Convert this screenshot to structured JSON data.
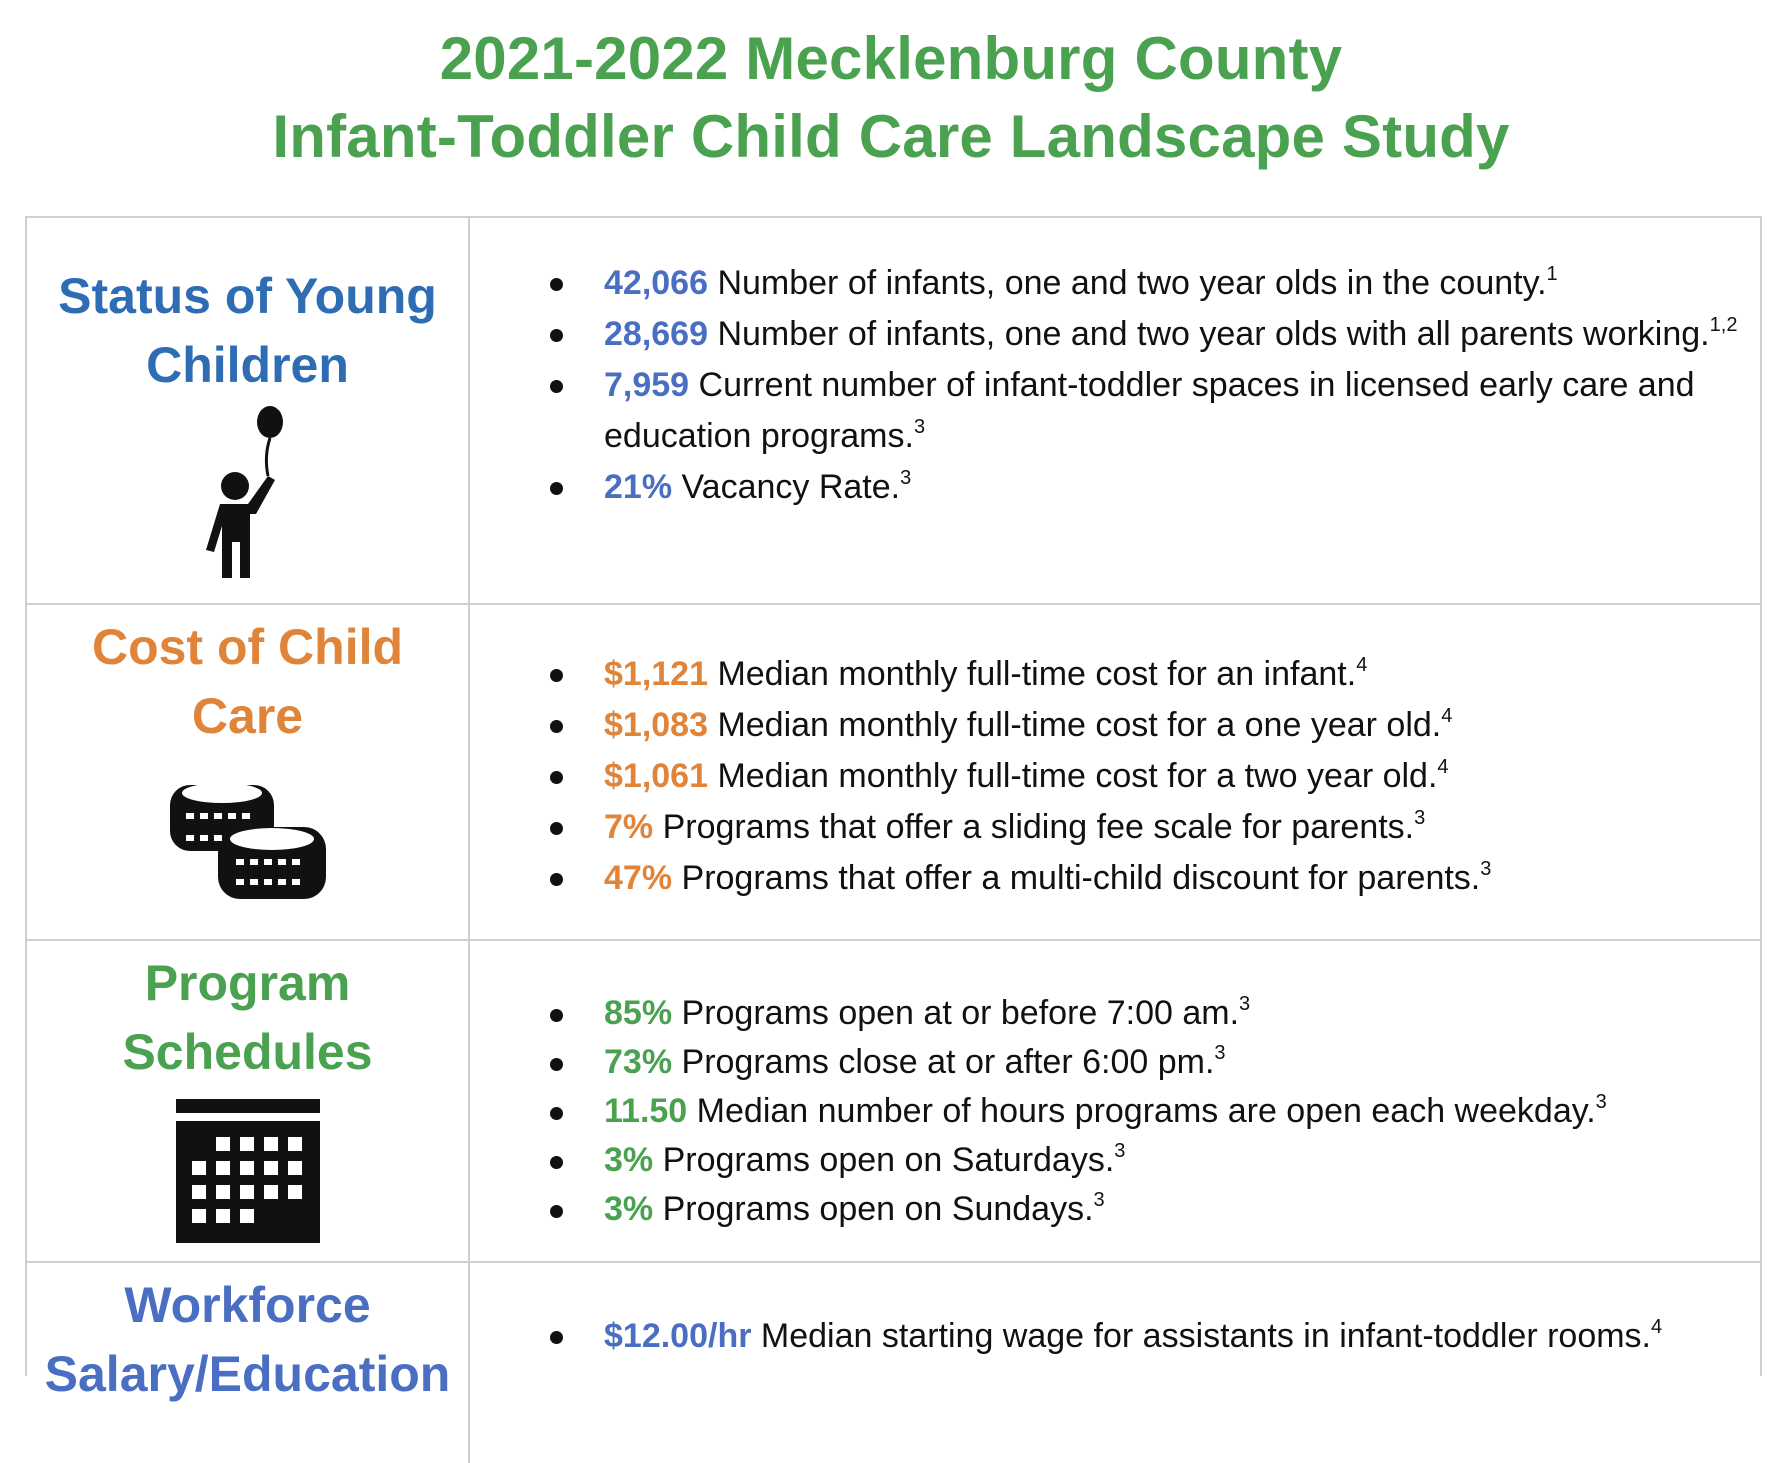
{
  "title": {
    "line1": "2021-2022 Mecklenburg County",
    "line2": "Infant-Toddler Child Care Landscape Study"
  },
  "colors": {
    "title": "#4aa14f",
    "status": "#2e6db4",
    "cost": "#e0843a",
    "schedules": "#4aa14f",
    "workforce": "#4a6fc2"
  },
  "sections": [
    {
      "heading_line1": "Status of Young",
      "heading_line2": "Children",
      "icon": "child-balloon-icon",
      "items": [
        {
          "value": "42,066",
          "text": "Number of infants, one and two year olds in the county.",
          "sup": "1"
        },
        {
          "value": "28,669",
          "text": "Number of infants, one and two year olds with all parents working.",
          "sup": "1,2"
        },
        {
          "value": "7,959",
          "text": "Current number of infant-toddler spaces in licensed early care and education programs.",
          "sup": "3"
        },
        {
          "value": "21%",
          "text": "Vacancy Rate.",
          "sup": "3"
        }
      ]
    },
    {
      "heading_line1": "Cost of Child",
      "heading_line2": "Care",
      "icon": "coins-icon",
      "items": [
        {
          "value": "$1,121",
          "text": "Median monthly full-time cost for an infant.",
          "sup": "4"
        },
        {
          "value": "$1,083",
          "text": "Median monthly full-time cost for a one year old.",
          "sup": "4"
        },
        {
          "value": "$1,061",
          "text": "Median monthly full-time cost for a two year old.",
          "sup": "4"
        },
        {
          "value": "7%",
          "text": "Programs that offer a sliding fee scale for parents.",
          "sup": "3"
        },
        {
          "value": "47%",
          "text": "Programs that offer a multi-child discount for parents.",
          "sup": "3"
        }
      ]
    },
    {
      "heading_line1": "Program",
      "heading_line2": "Schedules",
      "icon": "calendar-icon",
      "items": [
        {
          "value": "85%",
          "text": "Programs open at or before 7:00 am.",
          "sup": "3"
        },
        {
          "value": "73%",
          "text": "Programs close at or after 6:00 pm.",
          "sup": "3"
        },
        {
          "value": "11.50",
          "text": "Median number of hours programs are open each weekday.",
          "sup": "3"
        },
        {
          "value": "3%",
          "text": "Programs open on Saturdays.",
          "sup": "3"
        },
        {
          "value": "3%",
          "text": "Programs open on Sundays.",
          "sup": "3"
        }
      ]
    },
    {
      "heading_line1": "Workforce",
      "heading_line2": "Salary/Education",
      "items": [
        {
          "value": "$12.00/hr",
          "text": "Median starting wage for assistants in infant-toddler rooms.",
          "sup": "4"
        }
      ]
    }
  ]
}
